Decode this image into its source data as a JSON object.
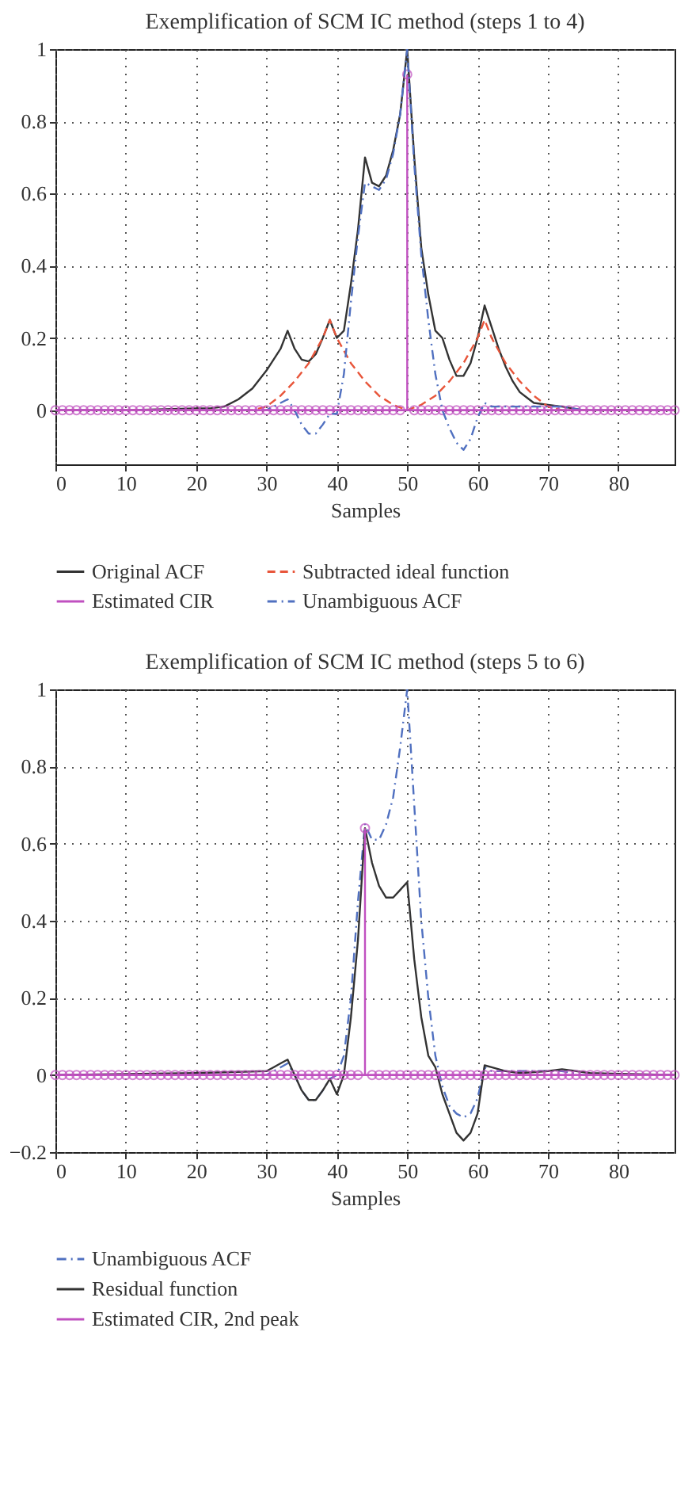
{
  "chart_data": [
    {
      "type": "line",
      "title": "Exemplification of SCM IC method (steps 1 to 4)",
      "xlabel": "Samples",
      "xlim": [
        0,
        88
      ],
      "xticks": [
        0,
        10,
        20,
        30,
        40,
        50,
        60,
        70,
        80
      ],
      "ylim": [
        -0.15,
        1
      ],
      "yticks": [
        0,
        0.2,
        0.4,
        0.6,
        0.8,
        1
      ],
      "grid": true,
      "legend": "bottom",
      "ref_lines": [
        {
          "axis": "y",
          "value": 0,
          "color": "#c050c0"
        }
      ],
      "series": [
        {
          "name": "Original ACF",
          "color": "#333333",
          "line_style": "solid",
          "x": [
            0,
            10,
            20,
            22,
            24,
            26,
            28,
            30,
            32,
            33,
            34,
            35,
            36,
            37,
            38,
            39,
            40,
            41,
            42,
            43,
            44,
            45,
            46,
            47,
            48,
            49,
            50,
            51,
            52,
            53,
            54,
            55,
            56,
            57,
            58,
            59,
            60,
            61,
            62,
            63,
            64,
            65,
            66,
            67,
            68,
            70,
            72,
            75,
            80,
            88
          ],
          "values": [
            0,
            0,
            0.005,
            0.005,
            0.01,
            0.03,
            0.06,
            0.11,
            0.17,
            0.22,
            0.17,
            0.14,
            0.135,
            0.155,
            0.2,
            0.25,
            0.2,
            0.22,
            0.35,
            0.5,
            0.7,
            0.63,
            0.62,
            0.65,
            0.72,
            0.82,
            1,
            0.7,
            0.45,
            0.32,
            0.22,
            0.2,
            0.14,
            0.095,
            0.095,
            0.13,
            0.2,
            0.29,
            0.23,
            0.17,
            0.12,
            0.08,
            0.05,
            0.035,
            0.02,
            0.015,
            0.01,
            0,
            0,
            0
          ]
        },
        {
          "name": "Subtracted ideal function",
          "color": "#e8553a",
          "line_style": "dashed",
          "x": [
            0,
            20,
            28,
            30,
            32,
            34,
            36,
            38,
            39,
            40,
            42,
            44,
            46,
            48,
            50,
            52,
            54,
            56,
            58,
            60,
            61,
            62,
            64,
            66,
            68,
            70,
            72,
            88
          ],
          "values": [
            0,
            0,
            0,
            0.01,
            0.04,
            0.08,
            0.13,
            0.2,
            0.25,
            0.2,
            0.13,
            0.08,
            0.04,
            0.015,
            0,
            0.015,
            0.04,
            0.08,
            0.13,
            0.2,
            0.25,
            0.2,
            0.13,
            0.08,
            0.04,
            0.01,
            0,
            0
          ]
        },
        {
          "name": "Estimated CIR",
          "type": "lollipop",
          "color": "#c050c0",
          "marker": "circle",
          "x": [
            0,
            1,
            2,
            3,
            4,
            5,
            6,
            7,
            8,
            9,
            10,
            11,
            12,
            13,
            14,
            15,
            16,
            17,
            18,
            19,
            20,
            21,
            22,
            23,
            24,
            25,
            26,
            27,
            28,
            29,
            30,
            31,
            32,
            33,
            34,
            35,
            36,
            37,
            38,
            39,
            40,
            41,
            42,
            43,
            44,
            45,
            46,
            47,
            48,
            49,
            50,
            51,
            52,
            53,
            54,
            55,
            56,
            57,
            58,
            59,
            60,
            61,
            62,
            63,
            64,
            65,
            66,
            67,
            68,
            69,
            70,
            71,
            72,
            73,
            74,
            75,
            76,
            77,
            78,
            79,
            80,
            81,
            82,
            83,
            84,
            85,
            86,
            87,
            88
          ],
          "values": [
            0,
            0,
            0,
            0,
            0,
            0,
            0,
            0,
            0,
            0,
            0,
            0,
            0,
            0,
            0,
            0,
            0,
            0,
            0,
            0,
            0,
            0,
            0,
            0,
            0,
            0,
            0,
            0,
            0,
            0,
            0,
            0,
            0,
            0,
            0,
            0,
            0,
            0,
            0,
            0,
            0,
            0,
            0,
            0,
            0,
            0,
            0,
            0,
            0,
            0,
            0.93,
            0,
            0,
            0,
            0,
            0,
            0,
            0,
            0,
            0,
            0,
            0,
            0,
            0,
            0,
            0,
            0,
            0,
            0,
            0,
            0,
            0,
            0,
            0,
            0,
            0,
            0,
            0,
            0,
            0,
            0,
            0,
            0,
            0,
            0,
            0,
            0,
            0,
            0
          ]
        },
        {
          "name": "Unambiguous ACF",
          "color": "#5070c0",
          "line_style": "dashdot",
          "x": [
            0,
            20,
            30,
            32,
            33,
            34,
            35,
            36,
            37,
            38,
            39,
            40,
            41,
            42,
            43,
            44,
            45,
            46,
            47,
            48,
            49,
            50,
            51,
            52,
            53,
            54,
            55,
            56,
            57,
            58,
            59,
            60,
            61,
            62,
            64,
            70,
            72,
            75,
            88
          ],
          "values": [
            0,
            0,
            0,
            0.02,
            0.03,
            0,
            -0.04,
            -0.065,
            -0.065,
            -0.04,
            -0.01,
            -0.01,
            0.1,
            0.3,
            0.48,
            0.63,
            0.62,
            0.61,
            0.64,
            0.71,
            0.82,
            1,
            0.68,
            0.43,
            0.25,
            0.1,
            0,
            -0.05,
            -0.09,
            -0.11,
            -0.08,
            -0.02,
            0.02,
            0.01,
            0.01,
            0.01,
            0.01,
            0,
            0
          ]
        }
      ]
    },
    {
      "type": "line",
      "title": "Exemplification of SCM IC method (steps 5 to 6)",
      "xlabel": "Samples",
      "xlim": [
        0,
        88
      ],
      "xticks": [
        0,
        10,
        20,
        30,
        40,
        50,
        60,
        70,
        80
      ],
      "ylim": [
        -0.2,
        1
      ],
      "yticks": [
        {
          "value": -0.2,
          "label": "−0.2"
        },
        0,
        0.2,
        0.4,
        0.6,
        0.8,
        1
      ],
      "grid": true,
      "legend": "bottom",
      "ref_lines": [
        {
          "axis": "y",
          "value": 0,
          "color": "#c050c0"
        }
      ],
      "series": [
        {
          "name": "Unambiguous ACF",
          "color": "#5070c0",
          "line_style": "dashdot",
          "x": [
            0,
            20,
            30,
            32,
            33,
            34,
            35,
            36,
            37,
            38,
            39,
            40,
            41,
            42,
            43,
            44,
            45,
            46,
            47,
            48,
            49,
            50,
            51,
            52,
            53,
            54,
            55,
            56,
            57,
            58,
            59,
            60,
            61,
            62,
            64,
            70,
            72,
            75,
            88
          ],
          "values": [
            0,
            0,
            0,
            0.02,
            0.03,
            0,
            -0.04,
            -0.065,
            -0.065,
            -0.04,
            -0.01,
            0,
            0.05,
            0.2,
            0.45,
            0.65,
            0.61,
            0.61,
            0.65,
            0.72,
            0.85,
            1,
            0.7,
            0.4,
            0.2,
            0.05,
            -0.03,
            -0.08,
            -0.1,
            -0.11,
            -0.1,
            -0.06,
            0.02,
            0.01,
            0.01,
            0.01,
            0.01,
            0,
            0
          ]
        },
        {
          "name": "Residual function",
          "color": "#333333",
          "line_style": "solid",
          "x": [
            0,
            20,
            30,
            31,
            32,
            33,
            34,
            35,
            36,
            37,
            38,
            39,
            40,
            41,
            42,
            43,
            44,
            45,
            46,
            47,
            48,
            49,
            50,
            51,
            52,
            53,
            54,
            55,
            56,
            57,
            58,
            59,
            60,
            61,
            62,
            64,
            66,
            70,
            72,
            74,
            76,
            88
          ],
          "values": [
            0,
            0.005,
            0.01,
            0.02,
            0.03,
            0.04,
            0,
            -0.04,
            -0.065,
            -0.065,
            -0.04,
            -0.01,
            -0.05,
            0,
            0.15,
            0.35,
            0.64,
            0.55,
            0.49,
            0.46,
            0.46,
            0.48,
            0.5,
            0.3,
            0.15,
            0.05,
            0.02,
            -0.05,
            -0.1,
            -0.15,
            -0.17,
            -0.15,
            -0.1,
            0.025,
            0.02,
            0.01,
            0.005,
            0.01,
            0.015,
            0.01,
            0.005,
            0
          ]
        },
        {
          "name": "Estimated CIR, 2nd peak",
          "type": "lollipop",
          "color": "#c050c0",
          "marker": "circle",
          "x": [
            0,
            1,
            2,
            3,
            4,
            5,
            6,
            7,
            8,
            9,
            10,
            11,
            12,
            13,
            14,
            15,
            16,
            17,
            18,
            19,
            20,
            21,
            22,
            23,
            24,
            25,
            26,
            27,
            28,
            29,
            30,
            31,
            32,
            33,
            34,
            35,
            36,
            37,
            38,
            39,
            40,
            41,
            42,
            43,
            44,
            45,
            46,
            47,
            48,
            49,
            50,
            51,
            52,
            53,
            54,
            55,
            56,
            57,
            58,
            59,
            60,
            61,
            62,
            63,
            64,
            65,
            66,
            67,
            68,
            69,
            70,
            71,
            72,
            73,
            74,
            75,
            76,
            77,
            78,
            79,
            80,
            81,
            82,
            83,
            84,
            85,
            86,
            87,
            88
          ],
          "values": [
            0,
            0,
            0,
            0,
            0,
            0,
            0,
            0,
            0,
            0,
            0,
            0,
            0,
            0,
            0,
            0,
            0,
            0,
            0,
            0,
            0,
            0,
            0,
            0,
            0,
            0,
            0,
            0,
            0,
            0,
            0,
            0,
            0,
            0,
            0,
            0,
            0,
            0,
            0,
            0,
            0,
            0,
            0,
            0,
            0.64,
            0,
            0,
            0,
            0,
            0,
            0,
            0,
            0,
            0,
            0,
            0,
            0,
            0,
            0,
            0,
            0,
            0,
            0,
            0,
            0,
            0,
            0,
            0,
            0,
            0,
            0,
            0,
            0,
            0,
            0,
            0,
            0,
            0,
            0,
            0,
            0,
            0,
            0,
            0,
            0,
            0,
            0,
            0,
            0
          ]
        }
      ]
    }
  ]
}
